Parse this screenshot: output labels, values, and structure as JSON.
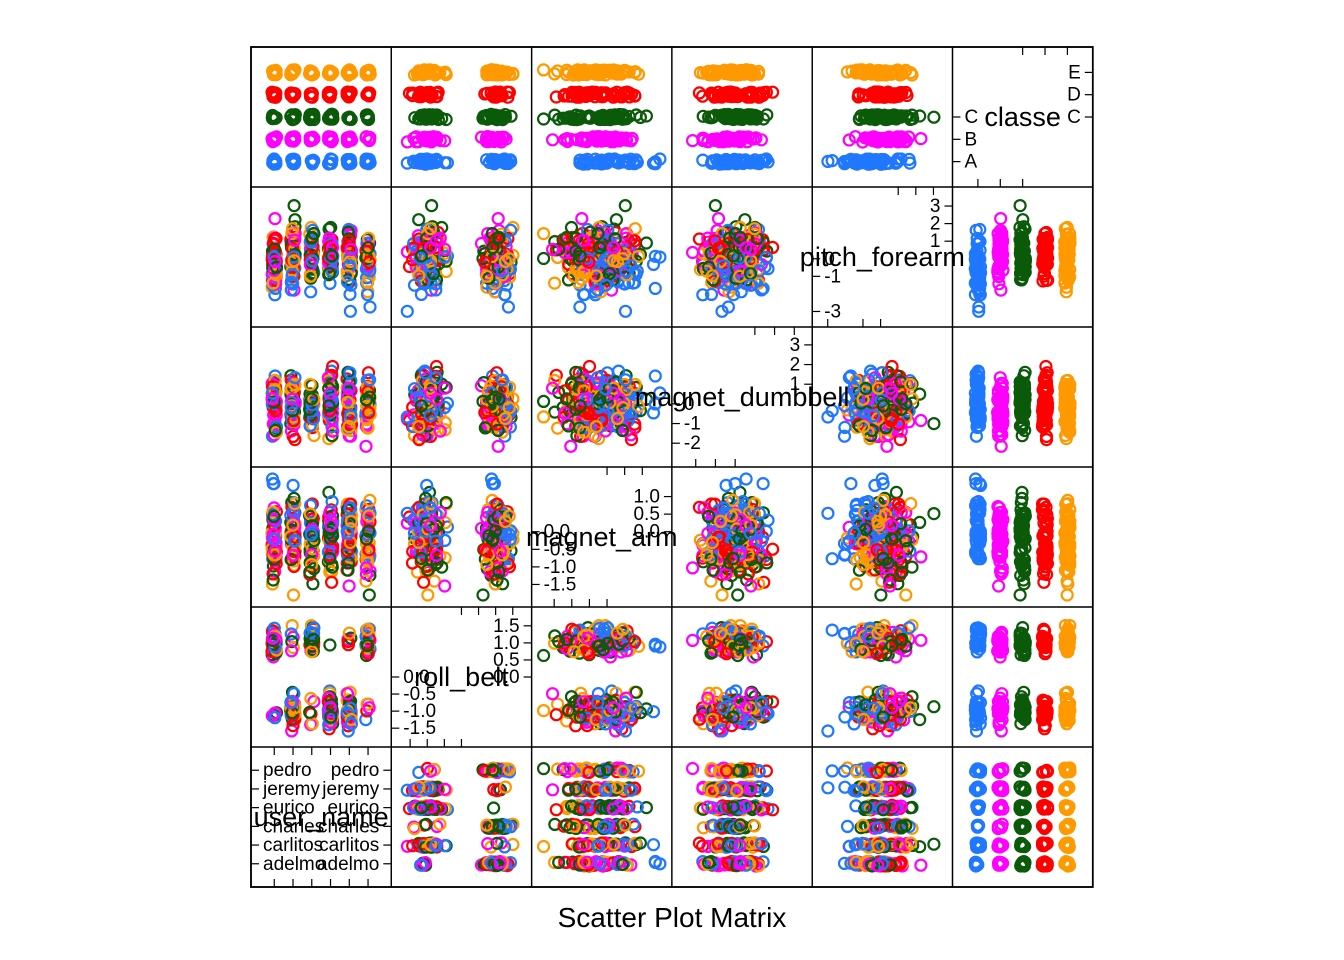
{
  "chart_data": {
    "type": "scatter",
    "subtype": "scatter-plot-matrix",
    "xlabel": "Scatter Plot Matrix",
    "variables": [
      {
        "name": "user_name",
        "kind": "factor",
        "levels": [
          "adelmo",
          "carlitos",
          "charles",
          "eurico",
          "jeremy",
          "pedro"
        ],
        "bottom_labels": [
          "adelmo",
          "carlitos",
          "charles",
          "eurico",
          "jeremy",
          "pedro"
        ],
        "top_labels": [
          "adelmo",
          "carlitos",
          "charles",
          "eurico",
          "jeremy",
          "pedro"
        ]
      },
      {
        "name": "roll_belt",
        "kind": "numeric",
        "range": [
          -1.7,
          1.7
        ],
        "bottom_labels": [
          "-1.5",
          "-1.0",
          "-0.5",
          "0.0"
        ],
        "bottom_values": [
          -1.5,
          -1.0,
          -0.5,
          0.0
        ],
        "top_labels": [
          "0.0",
          "0.5",
          "1.0",
          "1.5"
        ],
        "top_values": [
          0.0,
          0.5,
          1.0,
          1.5
        ]
      },
      {
        "name": "magnet_arm",
        "kind": "numeric",
        "range": [
          -1.8,
          1.5
        ],
        "bottom_labels": [
          "-1.5",
          "-1.0",
          "-0.5",
          "0.0"
        ],
        "bottom_values": [
          -1.5,
          -1.0,
          -0.5,
          0.0
        ],
        "top_labels": [
          "0.0",
          "0.5",
          "1.0"
        ],
        "top_values": [
          0.0,
          0.5,
          1.0
        ]
      },
      {
        "name": "magnet_dumbbell",
        "kind": "numeric",
        "range": [
          -2.6,
          3.3
        ],
        "bottom_labels": [
          "-2",
          "-1",
          "0"
        ],
        "bottom_values": [
          -2,
          -1,
          0
        ],
        "top_labels": [
          "1",
          "2",
          "3"
        ],
        "top_values": [
          1,
          2,
          3
        ]
      },
      {
        "name": "pitch_forearm",
        "kind": "numeric",
        "range": [
          -3.2,
          3.4
        ],
        "bottom_labels": [
          "-3",
          "-1",
          "0"
        ],
        "bottom_values": [
          -3,
          -1,
          0
        ],
        "top_labels": [
          "1",
          "2",
          "3"
        ],
        "top_values": [
          1,
          2,
          3
        ]
      },
      {
        "name": "classe",
        "kind": "factor",
        "levels": [
          "A",
          "B",
          "C",
          "D",
          "E"
        ],
        "bottom_labels": [
          "A",
          "B",
          "C"
        ],
        "top_labels": [
          "C",
          "D",
          "E"
        ]
      }
    ],
    "groups": [
      {
        "level": "A",
        "color": "#1f78ff"
      },
      {
        "level": "B",
        "color": "#ff00ff"
      },
      {
        "level": "C",
        "color": "#0a5a0a"
      },
      {
        "level": "D",
        "color": "#ff0000"
      },
      {
        "level": "E",
        "color": "#ff9900"
      }
    ],
    "marker": "open-circle",
    "grid": false,
    "legend": "none"
  }
}
